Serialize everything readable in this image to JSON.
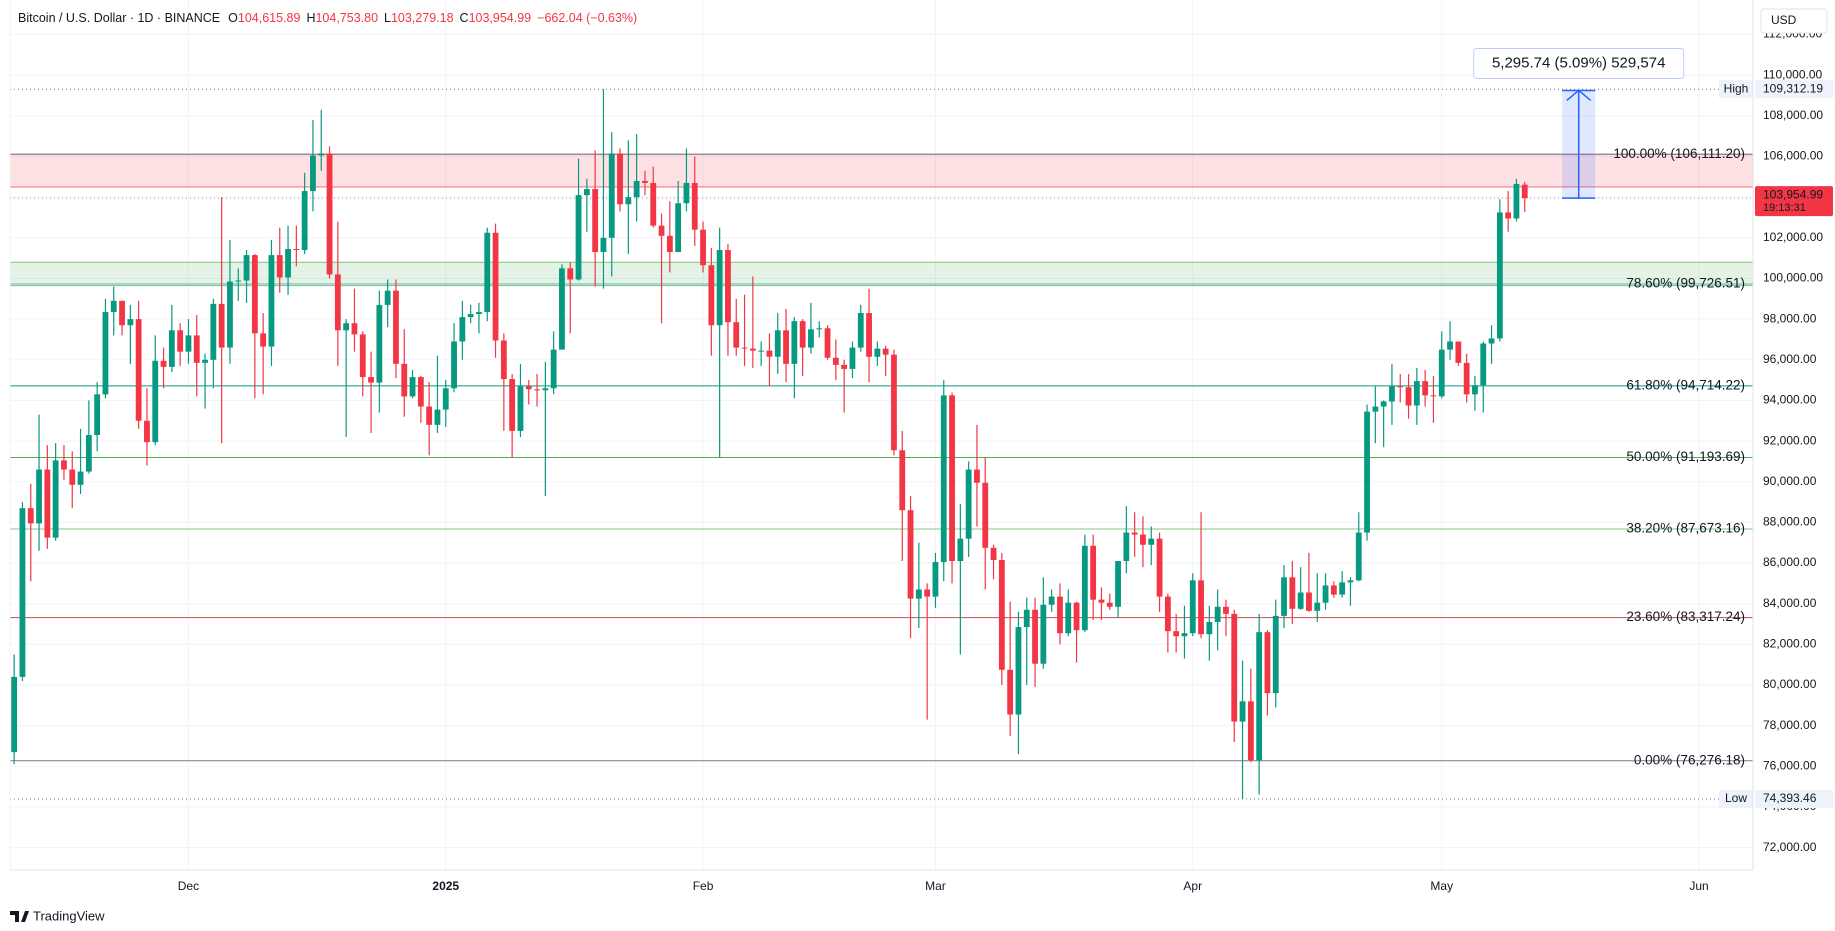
{
  "header": {
    "symbol": "Bitcoin / U.S. Dollar · 1D · BINANCE",
    "ohlc": [
      {
        "key": "O",
        "value": "104,615.89"
      },
      {
        "key": "H",
        "value": "104,753.80"
      },
      {
        "key": "L",
        "value": "103,279.18"
      },
      {
        "key": "C",
        "value": "103,954.99"
      }
    ],
    "change": "−662.04 (−0.63%)"
  },
  "currency": "USD",
  "brand": "TradingView",
  "chart_data": {
    "type": "candlestick",
    "categories": [
      null,
      null,
      null,
      null,
      null,
      null,
      null,
      null,
      null,
      null,
      null,
      null,
      null,
      null,
      null,
      null,
      null,
      null,
      null,
      null,
      null,
      "Dec",
      null,
      null,
      null,
      null,
      null,
      null,
      null,
      null,
      null,
      null,
      null,
      null,
      null,
      null,
      null,
      null,
      null,
      null,
      null,
      null,
      null,
      null,
      null,
      null,
      null,
      null,
      null,
      null,
      null,
      null,
      "2025",
      null,
      null,
      null,
      null,
      null,
      null,
      null,
      null,
      null,
      null,
      null,
      null,
      null,
      null,
      null,
      null,
      null,
      null,
      null,
      null,
      null,
      null,
      null,
      null,
      null,
      null,
      null,
      null,
      null,
      null,
      "Feb",
      null,
      null,
      null,
      null,
      null,
      null,
      null,
      null,
      null,
      null,
      null,
      null,
      null,
      null,
      null,
      null,
      null,
      null,
      null,
      null,
      null,
      null,
      null,
      null,
      null,
      null,
      null,
      "Mar",
      null,
      null,
      null,
      null,
      null,
      null,
      null,
      null,
      null,
      null,
      null,
      null,
      null,
      null,
      null,
      null,
      null,
      null,
      null,
      null,
      null,
      null,
      null,
      null,
      null,
      null,
      null,
      null,
      null,
      null,
      "Apr",
      null,
      null,
      null,
      null,
      null,
      null,
      null,
      null,
      null,
      null,
      null,
      null,
      null,
      null,
      null,
      null,
      null,
      null,
      null,
      null,
      null,
      null,
      null,
      null,
      null,
      null,
      null,
      null,
      null,
      "May",
      null,
      null,
      null,
      null,
      null,
      null,
      null,
      null,
      null,
      null,
      null,
      null,
      null,
      null,
      null,
      null,
      null,
      null,
      null,
      null,
      null,
      null,
      null,
      null,
      null,
      null,
      null,
      null,
      null,
      null,
      "Jun",
      null,
      null,
      null,
      null,
      null,
      null
    ],
    "open": [
      76700,
      80400,
      88700,
      87950,
      90600,
      87250,
      91050,
      90600,
      89850,
      90500,
      92300,
      94300,
      98350,
      98900,
      97700,
      98000,
      93000,
      91950,
      95950,
      95650,
      97450,
      96400,
      97200,
      95850,
      96000,
      98750,
      96600,
      99850,
      99900,
      101150,
      97300,
      96650,
      101150,
      100050,
      101450,
      101400,
      104300,
      106050,
      106150,
      100200,
      97450,
      97800,
      97250,
      95150,
      94880,
      98700,
      99400,
      95800,
      94200,
      95150,
      93700,
      92800,
      93550,
      94600,
      96900,
      98100,
      98250,
      98350,
      102250,
      96950,
      95050,
      92500,
      94700,
      94550,
      94500,
      94600,
      96500,
      100500,
      99950,
      104100,
      104400,
      101300,
      102000,
      106150,
      103650,
      104000,
      104800,
      104700,
      102600,
      102100,
      101300,
      103700,
      104700,
      102400,
      100650,
      97700,
      101400,
      97850,
      96600,
      96550,
      96450,
      96450,
      96150,
      97450,
      95800,
      97900,
      96600,
      97500,
      97550,
      96100,
      95750,
      95550,
      96600,
      98300,
      96150,
      96550,
      96250,
      91550,
      88600,
      84250,
      84700,
      84350,
      86050,
      94250,
      86100,
      87200,
      90600,
      89950,
      86750,
      86150,
      80750,
      78550,
      82850,
      83700,
      81050,
      83950,
      84350,
      82550,
      84050,
      82700,
      86850,
      84200,
      84050,
      83850,
      86100,
      87500,
      87400,
      86900,
      87200,
      84350,
      82650,
      82400,
      82550,
      85150,
      82500,
      83100,
      83850,
      83500,
      78200,
      79200,
      76300,
      82600,
      79600,
      83400,
      85300,
      83750,
      84550,
      83650,
      84050,
      84900,
      84450,
      85050,
      85150,
      87500,
      93450,
      93700,
      93950,
      94700,
      94650,
      93750,
      94950,
      94250,
      94200,
      96500,
      96900,
      95850,
      94300,
      94750,
      96800,
      97050,
      103250,
      102950,
      104615.89,
      null,
      null,
      null,
      null,
      null,
      null,
      null,
      null,
      null,
      null,
      null,
      null,
      null,
      null,
      null,
      null,
      null,
      null,
      null,
      null,
      null,
      null,
      null,
      null,
      null,
      null,
      null
    ],
    "high": [
      81500,
      89000,
      89900,
      93300,
      91800,
      91900,
      91800,
      91500,
      92600,
      94000,
      94900,
      99000,
      99600,
      98900,
      98700,
      98900,
      94600,
      97200,
      96600,
      98700,
      97800,
      98000,
      98200,
      96300,
      99000,
      104000,
      101900,
      100500,
      101400,
      101200,
      98300,
      101900,
      102500,
      102600,
      102600,
      105200,
      107800,
      108300,
      106500,
      102800,
      98000,
      99500,
      97400,
      96400,
      99400,
      99950,
      99950,
      97500,
      95500,
      95200,
      94900,
      96200,
      95000,
      97800,
      98900,
      98700,
      98800,
      102500,
      102700,
      97300,
      95300,
      95800,
      95000,
      95300,
      95900,
      97400,
      100700,
      100800,
      105900,
      104900,
      106300,
      109312.19,
      107200,
      106400,
      106800,
      107100,
      105300,
      105500,
      103200,
      103800,
      104800,
      106400,
      106000,
      102800,
      101500,
      102500,
      101700,
      99000,
      99200,
      100100,
      96900,
      97300,
      98300,
      98500,
      98100,
      98000,
      98800,
      97900,
      97700,
      97000,
      96000,
      96900,
      98700,
      99500,
      96900,
      96700,
      96500,
      92500,
      89300,
      87000,
      85000,
      86500,
      95000,
      94400,
      88900,
      91000,
      92800,
      91200,
      86900,
      86500,
      84100,
      83600,
      84300,
      84300,
      85300,
      84700,
      85000,
      84700,
      84100,
      87400,
      87400,
      84800,
      84500,
      86100,
      88800,
      88500,
      88300,
      87800,
      87500,
      84500,
      83500,
      83900,
      85500,
      88500,
      83900,
      84700,
      84200,
      83700,
      81200,
      80800,
      83500,
      82700,
      84200,
      85900,
      86100,
      85800,
      86500,
      85500,
      85500,
      85100,
      85600,
      85300,
      88500,
      93800,
      94700,
      94000,
      95800,
      95300,
      95300,
      95600,
      95500,
      95200,
      97400,
      97900,
      96900,
      96300,
      95200,
      96900,
      97700,
      103900,
      104300,
      104900,
      104753.8,
      null,
      null,
      null,
      null,
      null,
      null,
      null,
      null,
      null,
      null,
      null,
      null,
      null,
      null,
      null,
      null,
      null,
      null,
      null,
      null,
      null,
      null,
      null,
      null,
      null,
      null,
      null
    ],
    "low": [
      76100,
      80200,
      85100,
      86600,
      86700,
      87100,
      90100,
      88700,
      89400,
      90400,
      91500,
      94100,
      97200,
      97200,
      95800,
      92600,
      90800,
      91800,
      94600,
      95400,
      95700,
      95800,
      94200,
      93600,
      94600,
      91900,
      95800,
      98900,
      98800,
      94100,
      94300,
      95700,
      99300,
      99200,
      100600,
      101200,
      103300,
      105300,
      100000,
      95700,
      92200,
      96400,
      94200,
      92400,
      93400,
      97600,
      95100,
      93200,
      94100,
      92900,
      91300,
      92400,
      92700,
      94400,
      96000,
      97800,
      97300,
      97900,
      96100,
      92500,
      91200,
      92200,
      93800,
      93700,
      89300,
      94300,
      96500,
      97300,
      99900,
      102300,
      99600,
      99500,
      100100,
      103300,
      101200,
      102800,
      104100,
      102500,
      97800,
      100300,
      101300,
      103300,
      101600,
      100300,
      96200,
      91200,
      96200,
      96200,
      95700,
      95600,
      95700,
      94700,
      95300,
      94900,
      94100,
      95200,
      96300,
      97100,
      96000,
      95000,
      93400,
      95100,
      96400,
      94900,
      95700,
      95200,
      91300,
      86100,
      82300,
      82800,
      78300,
      83800,
      85100,
      85000,
      81500,
      86300,
      87800,
      84700,
      85200,
      80000,
      77500,
      76600,
      80000,
      79900,
      80800,
      83600,
      82000,
      82400,
      81100,
      82600,
      83200,
      83200,
      83700,
      83300,
      85500,
      86300,
      85800,
      85900,
      83600,
      81600,
      81600,
      81300,
      82400,
      82300,
      81200,
      81700,
      82400,
      77200,
      74393.46,
      76200,
      74600,
      78500,
      78900,
      82800,
      83000,
      83700,
      83600,
      83100,
      83700,
      84300,
      84300,
      83900,
      85100,
      87100,
      91900,
      91700,
      92800,
      93900,
      93100,
      92800,
      93700,
      92900,
      94100,
      96000,
      95700,
      93900,
      93500,
      93400,
      95800,
      96900,
      102300,
      102800,
      103279.18,
      null,
      null,
      null,
      null,
      null,
      null,
      null,
      null,
      null,
      null,
      null,
      null,
      null,
      null,
      null,
      null,
      null,
      null,
      null,
      null,
      null,
      null,
      null,
      null,
      null,
      null,
      null
    ],
    "close": [
      80400,
      88700,
      87950,
      90600,
      87250,
      91050,
      90600,
      89850,
      90500,
      92300,
      94300,
      98350,
      98900,
      97700,
      98000,
      93000,
      91950,
      95950,
      95650,
      97450,
      96400,
      97200,
      95850,
      96000,
      98750,
      96600,
      99850,
      99900,
      101150,
      97300,
      96650,
      101150,
      100050,
      101450,
      101400,
      104300,
      106050,
      106150,
      100200,
      97450,
      97800,
      97250,
      95150,
      94880,
      98700,
      99400,
      95800,
      94200,
      95150,
      93700,
      92800,
      93550,
      94600,
      96900,
      98100,
      98250,
      98350,
      102250,
      96950,
      95050,
      92500,
      94700,
      94550,
      94500,
      94600,
      96500,
      100500,
      99950,
      104100,
      104400,
      101300,
      102000,
      106150,
      103650,
      104000,
      104800,
      104700,
      102600,
      102100,
      101300,
      103700,
      104700,
      102400,
      100650,
      97700,
      101400,
      97850,
      96600,
      96550,
      96450,
      96450,
      96150,
      97450,
      95800,
      97900,
      96600,
      97500,
      97550,
      96100,
      95750,
      95550,
      96600,
      98300,
      96150,
      96550,
      96250,
      91550,
      88600,
      84250,
      84700,
      84350,
      86050,
      94250,
      86100,
      87200,
      90600,
      89950,
      86750,
      86150,
      80750,
      78550,
      82850,
      83700,
      81050,
      83950,
      84350,
      82550,
      84050,
      82700,
      86850,
      84200,
      84050,
      83850,
      86100,
      87500,
      87400,
      86900,
      87200,
      84350,
      82650,
      82400,
      82550,
      85150,
      82500,
      83100,
      83850,
      83500,
      78200,
      79200,
      76300,
      82600,
      79600,
      83400,
      85300,
      83750,
      84550,
      83650,
      84050,
      84900,
      84450,
      85050,
      85150,
      87500,
      93450,
      93700,
      93950,
      94700,
      94650,
      93750,
      94950,
      94250,
      94200,
      96500,
      96900,
      95850,
      94300,
      94750,
      96800,
      97050,
      103250,
      102950,
      104650,
      103954.99,
      null,
      null,
      null,
      null,
      null,
      null,
      null,
      null,
      null,
      null,
      null,
      null,
      null,
      null,
      null,
      null,
      null,
      null,
      null,
      null,
      null,
      null,
      null,
      null,
      null,
      null,
      null
    ],
    "up_color": "#089981",
    "down_color": "#f23645",
    "ylim": [
      70900,
      113700
    ],
    "yticks": [
      {
        "value": 72000,
        "label": "72,000.00"
      },
      {
        "value": 74000,
        "label": "74,000.00"
      },
      {
        "value": 76000,
        "label": "76,000.00"
      },
      {
        "value": 78000,
        "label": "78,000.00"
      },
      {
        "value": 80000,
        "label": "80,000.00"
      },
      {
        "value": 82000,
        "label": "82,000.00"
      },
      {
        "value": 84000,
        "label": "84,000.00"
      },
      {
        "value": 86000,
        "label": "86,000.00"
      },
      {
        "value": 88000,
        "label": "88,000.00"
      },
      {
        "value": 90000,
        "label": "90,000.00"
      },
      {
        "value": 92000,
        "label": "92,000.00"
      },
      {
        "value": 94000,
        "label": "94,000.00"
      },
      {
        "value": 96000,
        "label": "96,000.00"
      },
      {
        "value": 98000,
        "label": "98,000.00"
      },
      {
        "value": 100000,
        "label": "100,000.00"
      },
      {
        "value": 102000,
        "label": "102,000.00"
      },
      {
        "value": 104000,
        "label": "104,000.00"
      },
      {
        "value": 106000,
        "label": "106,000.00"
      },
      {
        "value": 108000,
        "label": "108,000.00"
      },
      {
        "value": 110000,
        "label": "110,000.00"
      },
      {
        "value": 112000,
        "label": "112,000.00"
      }
    ],
    "grid": true,
    "zones": [
      {
        "from": 104500,
        "to": 106111.2,
        "color": "#f23645"
      },
      {
        "from": 99650,
        "to": 100800,
        "color": "#4caf50"
      }
    ],
    "fib_levels": [
      {
        "label": "100.00% (106,111.20)",
        "value": 106111.2,
        "color": "#787b86"
      },
      {
        "label": "78.60% (99,726.51)",
        "value": 99726.51,
        "color": "#64b5c6"
      },
      {
        "label": "61.80% (94,714.22)",
        "value": 94714.22,
        "color": "#089981"
      },
      {
        "label": "50.00% (91,193.69)",
        "value": 91193.69,
        "color": "#4caf50"
      },
      {
        "label": "38.20% (87,673.16)",
        "value": 87673.16,
        "color": "#81c784"
      },
      {
        "label": "23.60% (83,317.24)",
        "value": 83317.24,
        "color": "#c0504d"
      },
      {
        "label": "0.00% (76,276.18)",
        "value": 76276.18,
        "color": "#787b86"
      }
    ],
    "high_marker": {
      "name": "High",
      "value": 109312.19,
      "label": "109,312.19"
    },
    "low_marker": {
      "name": "Low",
      "value": 74393.46,
      "label": "74,393.46"
    },
    "last_price": {
      "value": 103954.99,
      "label": "103,954.99",
      "countdown": "19:13:31"
    },
    "measure": {
      "from": 103954.99,
      "to": 109250.73,
      "label": "5,295.74 (5.09%) 529,574",
      "color": "#2962ff"
    }
  }
}
